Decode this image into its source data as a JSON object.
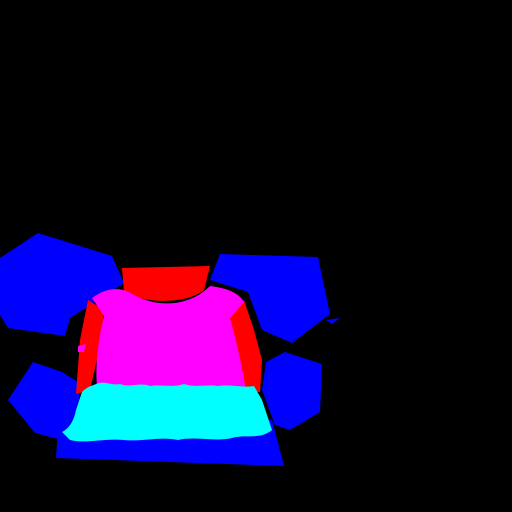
{
  "image": {
    "kind": "segmentation-mask",
    "background_color": "#000000",
    "regions": [
      {
        "label": "blue-region",
        "color": "#0000FF"
      },
      {
        "label": "red-region",
        "color": "#FF0000"
      },
      {
        "label": "magenta-region",
        "color": "#FF00FF"
      },
      {
        "label": "cyan-region",
        "color": "#00FFFF"
      }
    ]
  }
}
